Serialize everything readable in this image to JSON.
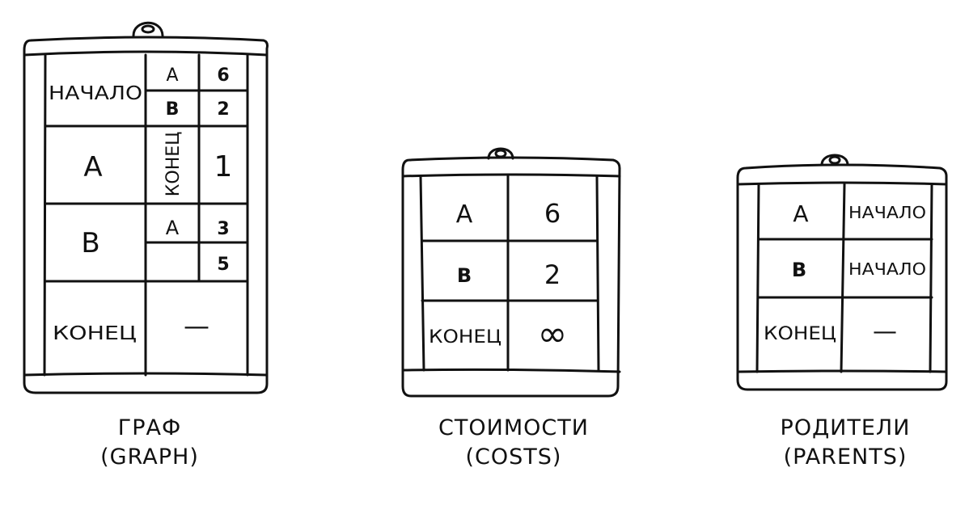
{
  "graph": {
    "caption": "ГРАФ",
    "caption_en": "(GRAPH)",
    "rows": [
      {
        "node": "НАЧАЛО",
        "neighbors": [
          {
            "name": "A",
            "weight": "6"
          },
          {
            "name": "B",
            "weight": "2"
          }
        ]
      },
      {
        "node": "A",
        "neighbors": [
          {
            "name": "КОНЕЦ",
            "weight": "1"
          }
        ]
      },
      {
        "node": "B",
        "neighbors": [
          {
            "name": "A",
            "weight": "3"
          },
          {
            "name": "",
            "weight": "5"
          }
        ]
      },
      {
        "node": "КОНЕЦ",
        "empty": "—"
      }
    ]
  },
  "costs": {
    "caption": "СТОИМОСТИ",
    "caption_en": "(COSTS)",
    "rows": [
      {
        "key": "A",
        "value": "6"
      },
      {
        "key": "B",
        "value": "2"
      },
      {
        "key": "КОНЕЦ",
        "value": "∞"
      }
    ]
  },
  "parents": {
    "caption": "РОДИТЕЛИ",
    "caption_en": "(PARENTS)",
    "rows": [
      {
        "key": "A",
        "value": "НАЧАЛО"
      },
      {
        "key": "B",
        "value": "НАЧАЛО"
      },
      {
        "key": "КОНЕЦ",
        "value": "—"
      }
    ]
  }
}
